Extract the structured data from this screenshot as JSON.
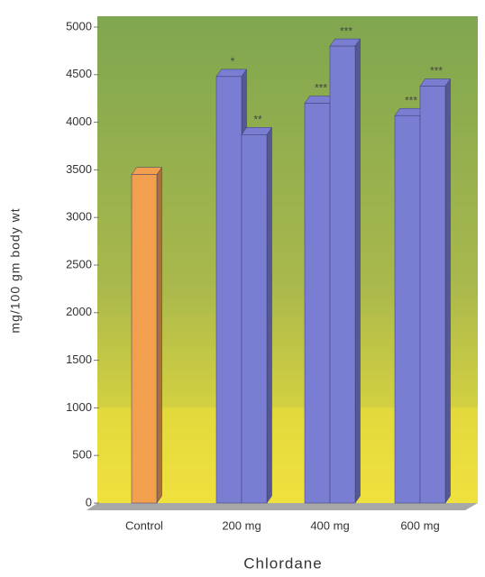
{
  "chart_data": {
    "type": "bar3d",
    "xlabel": "Chlordane",
    "ylabel": "mg/100 gm body wt",
    "categories": [
      "Control",
      "200 mg",
      "400 mg",
      "600 mg"
    ],
    "series": [
      {
        "colors": [
          "#f2a04e",
          "#7a7ed2",
          "#7a7ed2",
          "#7a7ed2"
        ],
        "values": [
          3450,
          4480,
          4200,
          4070
        ],
        "labels": [
          null,
          "*",
          "***",
          "***"
        ]
      },
      {
        "colors": [
          null,
          "#7a7ed2",
          "#7a7ed2",
          "#7a7ed2"
        ],
        "values": [
          null,
          3870,
          4800,
          4380
        ],
        "labels": [
          null,
          "**",
          "***",
          "***"
        ]
      }
    ],
    "ylim": [
      0,
      5000
    ],
    "yticks": [
      0,
      500,
      1000,
      1500,
      2000,
      2500,
      3000,
      3500,
      4000,
      4500,
      5000
    ],
    "grid": false
  }
}
